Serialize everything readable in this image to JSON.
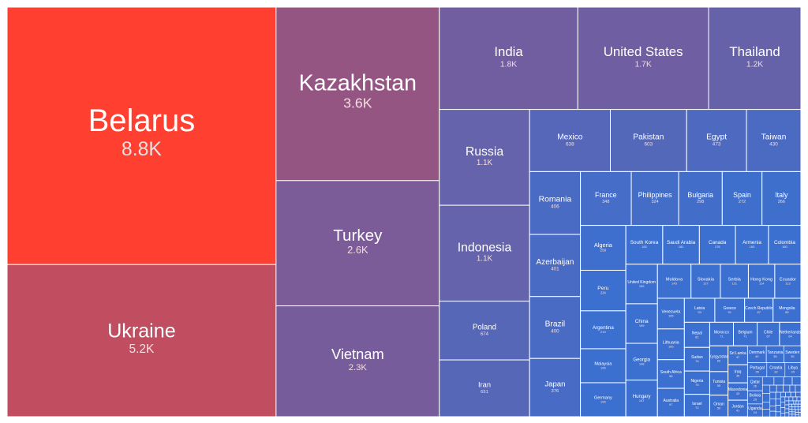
{
  "chart_data": {
    "type": "treemap",
    "colors": {
      "high": "#ff4030",
      "mid": "#7e5a95",
      "low": "#3b70d0",
      "border": "#ffffff"
    },
    "items": [
      {
        "name": "Belarus",
        "label": "8.8K",
        "value": 8800
      },
      {
        "name": "Ukraine",
        "label": "5.2K",
        "value": 5200
      },
      {
        "name": "Kazakhstan",
        "label": "3.6K",
        "value": 3600
      },
      {
        "name": "Turkey",
        "label": "2.6K",
        "value": 2600
      },
      {
        "name": "Vietnam",
        "label": "2.3K",
        "value": 2300
      },
      {
        "name": "India",
        "label": "1.8K",
        "value": 1800
      },
      {
        "name": "United States",
        "label": "1.7K",
        "value": 1700
      },
      {
        "name": "Thailand",
        "label": "1.2K",
        "value": 1200
      },
      {
        "name": "Russia",
        "label": "1.1K",
        "value": 1100
      },
      {
        "name": "Indonesia",
        "label": "1.1K",
        "value": 1100
      },
      {
        "name": "Poland",
        "label": "674",
        "value": 674
      },
      {
        "name": "Iran",
        "label": "651",
        "value": 651
      },
      {
        "name": "Mexico",
        "label": "638",
        "value": 638
      },
      {
        "name": "Pakistan",
        "label": "603",
        "value": 603
      },
      {
        "name": "Egypt",
        "label": "473",
        "value": 473
      },
      {
        "name": "Taiwan",
        "label": "430",
        "value": 430
      },
      {
        "name": "Romania",
        "label": "406",
        "value": 406
      },
      {
        "name": "Azerbaijan",
        "label": "401",
        "value": 401
      },
      {
        "name": "Brazil",
        "label": "400",
        "value": 400
      },
      {
        "name": "Japan",
        "label": "376",
        "value": 376
      },
      {
        "name": "France",
        "label": "348",
        "value": 348
      },
      {
        "name": "Philippines",
        "label": "324",
        "value": 324
      },
      {
        "name": "Bulgaria",
        "label": "298",
        "value": 298
      },
      {
        "name": "Spain",
        "label": "272",
        "value": 272
      },
      {
        "name": "Italy",
        "label": "266",
        "value": 266
      },
      {
        "name": "Algeria",
        "label": "259",
        "value": 259
      },
      {
        "name": "Peru",
        "label": "234",
        "value": 234
      },
      {
        "name": "Argentina",
        "label": "219",
        "value": 219
      },
      {
        "name": "Malaysia",
        "label": "196",
        "value": 196
      },
      {
        "name": "Germany",
        "label": "196",
        "value": 196
      },
      {
        "name": "South Korea",
        "label": "182",
        "value": 182
      },
      {
        "name": "Saudi Arabia",
        "label": "181",
        "value": 181
      },
      {
        "name": "Canada",
        "label": "178",
        "value": 178
      },
      {
        "name": "Armenia",
        "label": "163",
        "value": 163
      },
      {
        "name": "Colombia",
        "label": "160",
        "value": 160
      },
      {
        "name": "United Kingdom",
        "label": "159",
        "value": 159
      },
      {
        "name": "China",
        "label": "159",
        "value": 159
      },
      {
        "name": "Georgia",
        "label": "148",
        "value": 148
      },
      {
        "name": "Hungary",
        "label": "147",
        "value": 147
      },
      {
        "name": "Moldova",
        "label": "145",
        "value": 145
      },
      {
        "name": "Slovakia",
        "label": "127",
        "value": 127
      },
      {
        "name": "Serbia",
        "label": "121",
        "value": 121
      },
      {
        "name": "Hong Kong",
        "label": "114",
        "value": 114
      },
      {
        "name": "Ecuador",
        "label": "113",
        "value": 113
      },
      {
        "name": "Venezuela",
        "label": "105",
        "value": 105
      },
      {
        "name": "Lithuania",
        "label": "105",
        "value": 105
      },
      {
        "name": "South Africa",
        "label": "98",
        "value": 98
      },
      {
        "name": "Australia",
        "label": "97",
        "value": 97
      },
      {
        "name": "Latvia",
        "label": "93",
        "value": 93
      },
      {
        "name": "Greece",
        "label": "91",
        "value": 91
      },
      {
        "name": "Czech Republic",
        "label": "87",
        "value": 87
      },
      {
        "name": "Mongolia",
        "label": "85",
        "value": 85
      },
      {
        "name": "Nepal",
        "label": "81",
        "value": 81
      },
      {
        "name": "Sudan",
        "label": "76",
        "value": 76
      },
      {
        "name": "Nigeria",
        "label": "75",
        "value": 75
      },
      {
        "name": "Israel",
        "label": "72",
        "value": 72
      },
      {
        "name": "Morocco",
        "label": "71",
        "value": 71
      },
      {
        "name": "Belgium",
        "label": "71",
        "value": 71
      },
      {
        "name": "Chile",
        "label": "67",
        "value": 67
      },
      {
        "name": "Netherlands",
        "label": "64",
        "value": 64
      },
      {
        "name": "Kyrgyzstan",
        "label": "60",
        "value": 60
      },
      {
        "name": "Tunisia",
        "label": "55",
        "value": 55
      },
      {
        "name": "Oman",
        "label": "50",
        "value": 50
      },
      {
        "name": "Sri Lanka",
        "label": "47",
        "value": 47
      },
      {
        "name": "Iraq",
        "label": "45",
        "value": 45
      },
      {
        "name": "Macedonia",
        "label": "43",
        "value": 43
      },
      {
        "name": "Jordan",
        "label": "41",
        "value": 41
      },
      {
        "name": "Denmark",
        "label": "40",
        "value": 40
      },
      {
        "name": "Tanzania",
        "label": "38",
        "value": 38
      },
      {
        "name": "Sweden",
        "label": "36",
        "value": 36
      },
      {
        "name": "Portugal",
        "label": "35",
        "value": 35
      },
      {
        "name": "Croatia",
        "label": "33",
        "value": 33
      },
      {
        "name": "Libya",
        "label": "29",
        "value": 29
      },
      {
        "name": "Qatar",
        "label": "26",
        "value": 26
      },
      {
        "name": "Bolivia",
        "label": "25",
        "value": 25
      },
      {
        "name": "Uganda",
        "label": "24",
        "value": 24
      }
    ],
    "small_cell_counts": [
      12,
      10,
      9,
      9,
      8,
      8,
      7,
      7,
      6,
      6,
      6,
      5,
      5,
      5,
      5,
      4,
      4,
      4,
      4,
      4,
      3,
      3,
      3,
      3,
      3,
      3,
      3,
      3,
      2,
      2,
      2,
      2,
      2,
      2,
      2,
      2,
      2,
      2,
      1,
      1,
      1,
      1,
      1,
      1,
      1,
      1,
      1,
      1,
      1,
      1,
      1,
      1,
      1,
      1,
      1,
      1,
      1,
      1,
      1,
      1
    ]
  }
}
